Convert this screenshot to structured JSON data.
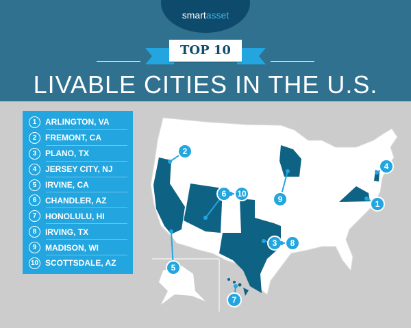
{
  "brand": {
    "logo_text_a": "smart",
    "logo_text_b": "asset",
    "logo_mark": "™"
  },
  "header": {
    "ribbon": "TOP 10",
    "title": "LIVABLE CITIES IN THE U.S."
  },
  "colors": {
    "header_bg": "#30718f",
    "accent": "#23a6df",
    "highlight_state": "#0e6385",
    "background": "#cccccc"
  },
  "rankings": [
    {
      "rank": "1",
      "city": "ARLINGTON, VA"
    },
    {
      "rank": "2",
      "city": "FREMONT, CA"
    },
    {
      "rank": "3",
      "city": "PLANO, TX"
    },
    {
      "rank": "4",
      "city": "JERSEY CITY, NJ"
    },
    {
      "rank": "5",
      "city": "IRVINE, CA"
    },
    {
      "rank": "6",
      "city": "CHANDLER, AZ"
    },
    {
      "rank": "7",
      "city": "HONOLULU, HI"
    },
    {
      "rank": "8",
      "city": "IRVING, TX"
    },
    {
      "rank": "9",
      "city": "MADISON, WI"
    },
    {
      "rank": "10",
      "city": "SCOTTSDALE, AZ"
    }
  ],
  "map": {
    "highlighted_states": [
      "VA",
      "CA",
      "TX",
      "NJ",
      "AZ",
      "HI",
      "WI"
    ],
    "markers": [
      "1",
      "2",
      "3",
      "8",
      "4",
      "5",
      "6",
      "10",
      "9",
      "7"
    ]
  }
}
